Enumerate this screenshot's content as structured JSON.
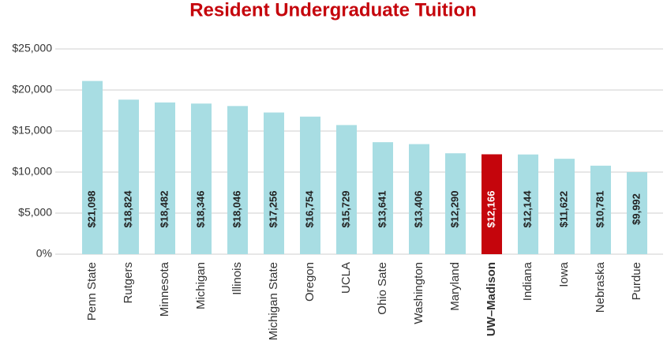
{
  "chart_data": {
    "type": "bar",
    "title": "Resident Undergraduate Tuition",
    "categories": [
      "Penn State",
      "Rutgers",
      "Minnesota",
      "Michigan",
      "Illinois",
      "Michigan State",
      "Oregon",
      "UCLA",
      "Ohio Sate",
      "Washington",
      "Maryland",
      "UW–Madison",
      "Indiana",
      "Iowa",
      "Nebraska",
      "Purdue"
    ],
    "values": [
      21098,
      18824,
      18482,
      18346,
      18046,
      17256,
      16754,
      15729,
      13641,
      13406,
      12290,
      12166,
      12144,
      11622,
      10781,
      9992
    ],
    "value_labels": [
      "$21,098",
      "$18,824",
      "$18,482",
      "$18,346",
      "$18,046",
      "$17,256",
      "$16,754",
      "$15,729",
      "$13,641",
      "$13,406",
      "$12,290",
      "$12,166",
      "$12,144",
      "$11,622",
      "$10,781",
      "$9,992"
    ],
    "colors": [
      "#a8dde3",
      "#a8dde3",
      "#a8dde3",
      "#a8dde3",
      "#a8dde3",
      "#a8dde3",
      "#a8dde3",
      "#a8dde3",
      "#a8dde3",
      "#a8dde3",
      "#a8dde3",
      "#c5050c",
      "#a8dde3",
      "#a8dde3",
      "#a8dde3",
      "#a8dde3"
    ],
    "ylim": [
      0,
      25000
    ],
    "yticks": [
      {
        "value": 0,
        "label": "0%"
      },
      {
        "value": 5000,
        "label": "$5,000"
      },
      {
        "value": 10000,
        "label": "$10,000"
      },
      {
        "value": 15000,
        "label": "$15,000"
      },
      {
        "value": 20000,
        "label": "$20,000"
      },
      {
        "value": 25000,
        "label": "$25,000"
      }
    ],
    "grid": true
  }
}
